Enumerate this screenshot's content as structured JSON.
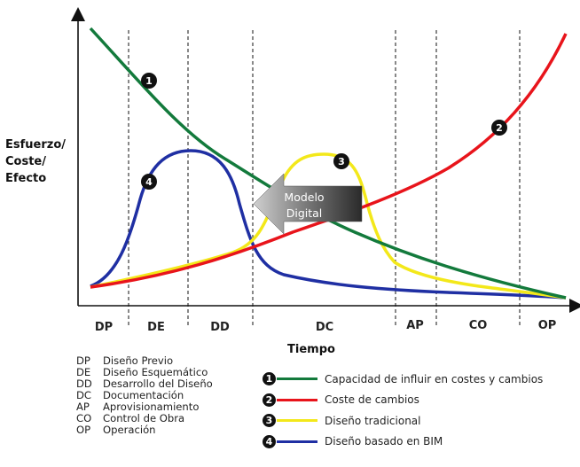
{
  "axes": {
    "y_label_lines": [
      "Esfuerzo/",
      "Coste/",
      "Efecto"
    ],
    "x_label": "Tiempo"
  },
  "phases": [
    "DP",
    "DE",
    "DD",
    "DC",
    "AP",
    "CO",
    "OP"
  ],
  "markers": {
    "m1": "1",
    "m2": "2",
    "m3": "3",
    "m4": "4"
  },
  "arrow_label_lines": [
    "Modelo",
    "Digital"
  ],
  "abbreviations": [
    {
      "code": "DP",
      "name": "Diseño Previo"
    },
    {
      "code": "DE",
      "name": "Diseño Esquemático"
    },
    {
      "code": "DD",
      "name": "Desarrollo del Diseño"
    },
    {
      "code": "DC",
      "name": "Documentación"
    },
    {
      "code": "AP",
      "name": "Aprovisionamiento"
    },
    {
      "code": "CO",
      "name": "Control de Obra"
    },
    {
      "code": "OP",
      "name": "Operación"
    }
  ],
  "legend": [
    {
      "num": "1",
      "label": "Capacidad de influir en costes y cambios",
      "color": "#137a3c"
    },
    {
      "num": "2",
      "label": "Coste de cambios",
      "color": "#e8141b"
    },
    {
      "num": "3",
      "label": "Diseño tradicional",
      "color": "#f3e81a"
    },
    {
      "num": "4",
      "label": "Diseño basado en BIM",
      "color": "#1f2fa3"
    }
  ],
  "colors": {
    "influence_curve": "#137a3c",
    "cost_curve": "#e8141b",
    "traditional_curve": "#f3e81a",
    "bim_curve": "#1f2fa3"
  }
}
